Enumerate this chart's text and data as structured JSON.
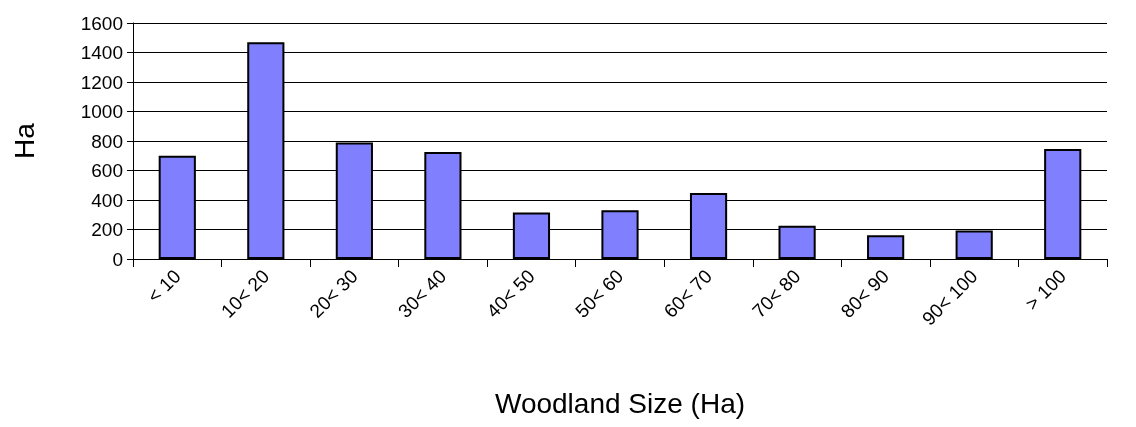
{
  "chart_data": {
    "type": "bar",
    "xlabel": "Woodland Size (Ha)",
    "ylabel": "Ha",
    "categories": [
      "< 10",
      "10< 20",
      "20< 30",
      "30< 40",
      "40< 50",
      "50< 60",
      "60< 70",
      "70< 80",
      "80< 90",
      "90< 100",
      "> 100"
    ],
    "values": [
      700,
      1470,
      790,
      725,
      315,
      330,
      448,
      225,
      161,
      194,
      746
    ],
    "color": "#8080ff",
    "ylim": [
      0,
      1600
    ],
    "yticks": [
      0,
      200,
      400,
      600,
      800,
      1000,
      1200,
      1400,
      1600
    ],
    "grid": "y"
  }
}
